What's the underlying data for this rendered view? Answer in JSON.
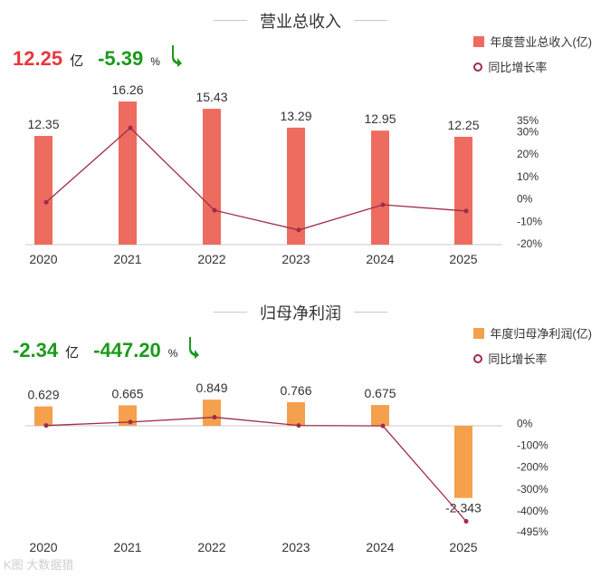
{
  "sections": [
    {
      "title": "营业总收入",
      "kpi": {
        "value": "12.25",
        "value_unit": "亿",
        "change": "-5.39",
        "change_unit": "%",
        "value_color": "#e8383d",
        "change_color": "#1a9a1a",
        "direction": "down"
      },
      "legend": {
        "bar_label": "年度营业总收入(亿)",
        "line_label": "同比增长率"
      }
    },
    {
      "title": "归母净利润",
      "kpi": {
        "value": "-2.34",
        "value_unit": "亿",
        "change": "-447.20",
        "change_unit": "%",
        "value_color": "#1a9a1a",
        "change_color": "#1a9a1a",
        "direction": "down"
      },
      "legend": {
        "bar_label": "年度归母净利润(亿)",
        "line_label": "同比增长率"
      }
    }
  ],
  "watermark": "K图 大数据猎",
  "chart_data": [
    {
      "type": "bar",
      "title": "营业总收入",
      "categories": [
        "2020",
        "2021",
        "2022",
        "2023",
        "2024",
        "2025"
      ],
      "series": [
        {
          "name": "年度营业总收入(亿)",
          "type": "bar",
          "values": [
            12.35,
            16.26,
            15.43,
            13.29,
            12.95,
            12.25
          ],
          "labels": [
            "12.35",
            "16.26",
            "15.43",
            "13.29",
            "12.95",
            "12.25"
          ]
        },
        {
          "name": "同比增长率",
          "type": "line",
          "values": [
            -1.5,
            31.7,
            -5.1,
            -13.9,
            -2.6,
            -5.39
          ]
        }
      ],
      "y_right_ticks": [
        "35%",
        "30%",
        "20%",
        "10%",
        "0%",
        "-10%",
        "-20%"
      ],
      "y_right_values": [
        35,
        30,
        20,
        10,
        0,
        -10,
        -20
      ],
      "y_right_range": [
        -20,
        35
      ],
      "colors": {
        "bar": "#ee6b5f",
        "line": "#9e2c4a"
      }
    },
    {
      "type": "bar",
      "title": "归母净利润",
      "categories": [
        "2020",
        "2021",
        "2022",
        "2023",
        "2024",
        "2025"
      ],
      "series": [
        {
          "name": "年度归母净利润(亿)",
          "type": "bar",
          "values": [
            0.629,
            0.665,
            0.849,
            0.766,
            0.675,
            -2.343
          ],
          "labels": [
            "0.629",
            "0.665",
            "0.849",
            "0.766",
            "0.675",
            "-2.343"
          ]
        },
        {
          "name": "同比增长率",
          "type": "line",
          "values": [
            -10,
            5.7,
            27.7,
            -9.8,
            -11.9,
            -447.2
          ]
        }
      ],
      "y_right_ticks": [
        "0%",
        "-100%",
        "-200%",
        "-300%",
        "-400%",
        "-495%"
      ],
      "y_right_values": [
        0,
        -100,
        -200,
        -300,
        -400,
        -495
      ],
      "y_right_range": [
        -495,
        30
      ],
      "colors": {
        "bar": "#f4a04c",
        "line": "#9e2c4a"
      }
    }
  ]
}
